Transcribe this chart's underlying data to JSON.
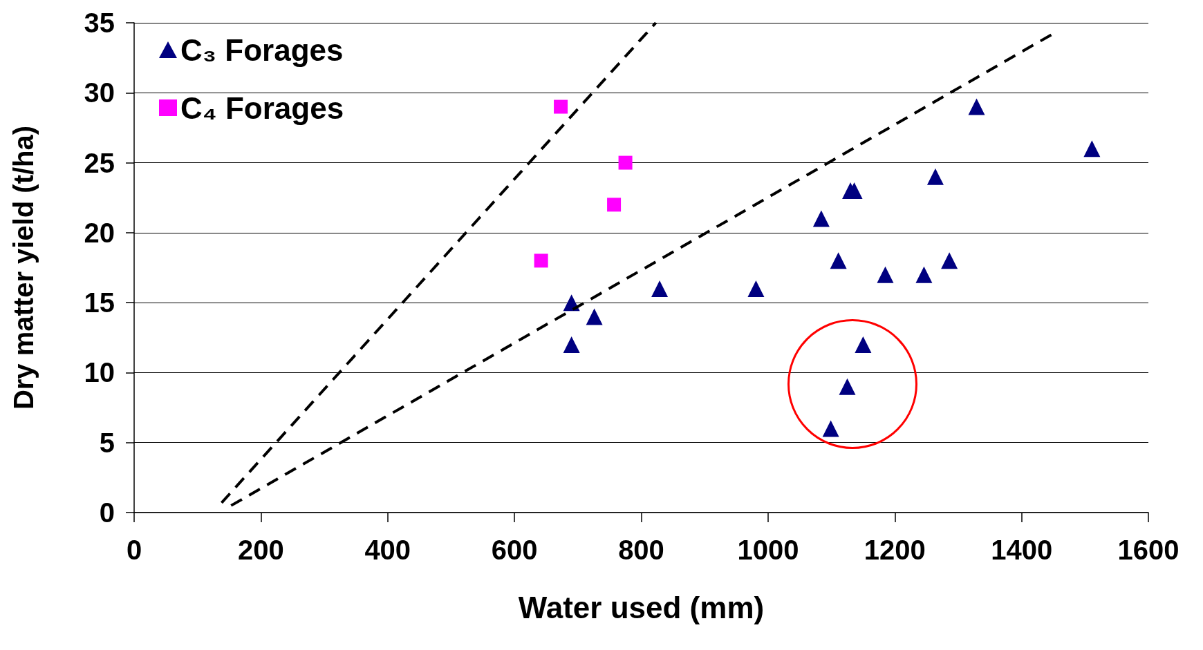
{
  "chart_data": {
    "type": "scatter",
    "xlabel": "Water used (mm)",
    "ylabel": "Dry matter yield (t/ha)",
    "xlim": [
      0,
      1600
    ],
    "xticks": [
      0,
      200,
      400,
      600,
      800,
      1000,
      1200,
      1400,
      1600
    ],
    "ylim": [
      0,
      35
    ],
    "yticks": [
      0,
      5,
      10,
      15,
      20,
      25,
      30,
      35
    ],
    "grid": "y",
    "legend": "top left",
    "series": [
      {
        "name": "C₃ Forages",
        "marker": "triangle",
        "color": "#000080",
        "x": [
          690,
          690,
          726,
          829,
          981,
          1084,
          1111,
          1130,
          1136,
          1185,
          1246,
          1264,
          1286,
          1329,
          1511,
          1150,
          1125,
          1099
        ],
        "values": [
          15,
          12,
          14,
          16,
          16,
          21,
          18,
          23,
          23,
          17,
          17,
          24,
          18,
          29,
          26,
          12,
          9,
          6
        ]
      },
      {
        "name": "C₄ Forages",
        "marker": "square",
        "color": "#ff00ff",
        "x": [
          673,
          775,
          757,
          642
        ],
        "values": [
          29,
          25,
          22,
          18
        ]
      },
      {
        "type": "line",
        "marker": "none",
        "line_style": "dashed",
        "color": "#000000",
        "x": [
          138,
          823
        ],
        "values": [
          0.7,
          35
        ]
      },
      {
        "type": "line",
        "marker": "none",
        "line_style": "dashed",
        "color": "#000000",
        "x": [
          153,
          1449
        ],
        "values": [
          0.5,
          34.2
        ]
      }
    ]
  }
}
